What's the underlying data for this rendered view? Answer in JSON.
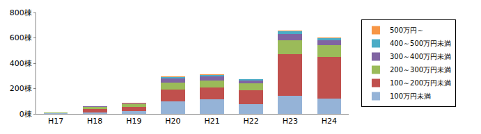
{
  "chart_data": {
    "type": "bar",
    "stacked": true,
    "categories": [
      "H17",
      "H18",
      "H19",
      "H20",
      "H21",
      "H22",
      "H23",
      "H24"
    ],
    "series": [
      {
        "name": "100万円未満",
        "color": "#95b3d7",
        "values": [
          3,
          10,
          20,
          100,
          115,
          75,
          140,
          120
        ]
      },
      {
        "name": "100～200万円未満",
        "color": "#c0504d",
        "values": [
          5,
          30,
          35,
          90,
          95,
          110,
          330,
          330
        ]
      },
      {
        "name": "200～300万円未満",
        "color": "#9bbb59",
        "values": [
          2,
          15,
          22,
          55,
          55,
          55,
          110,
          90
        ]
      },
      {
        "name": "300～400万円未満",
        "color": "#8064a2",
        "values": [
          0,
          3,
          5,
          35,
          30,
          25,
          50,
          40
        ]
      },
      {
        "name": "400～500万円未満",
        "color": "#4bacc6",
        "values": [
          0,
          1,
          2,
          12,
          12,
          7,
          20,
          15
        ]
      },
      {
        "name": "500万円～",
        "color": "#f79646",
        "values": [
          0,
          1,
          1,
          6,
          8,
          3,
          8,
          8
        ]
      }
    ],
    "ylim": [
      0,
      800
    ],
    "yticks": [
      {
        "value": 0,
        "label": "0棟"
      },
      {
        "value": 200,
        "label": "200棟"
      },
      {
        "value": 400,
        "label": "400棟"
      },
      {
        "value": 600,
        "label": "600棟"
      },
      {
        "value": 800,
        "label": "800棟"
      }
    ],
    "grid": false,
    "legend": "right"
  }
}
